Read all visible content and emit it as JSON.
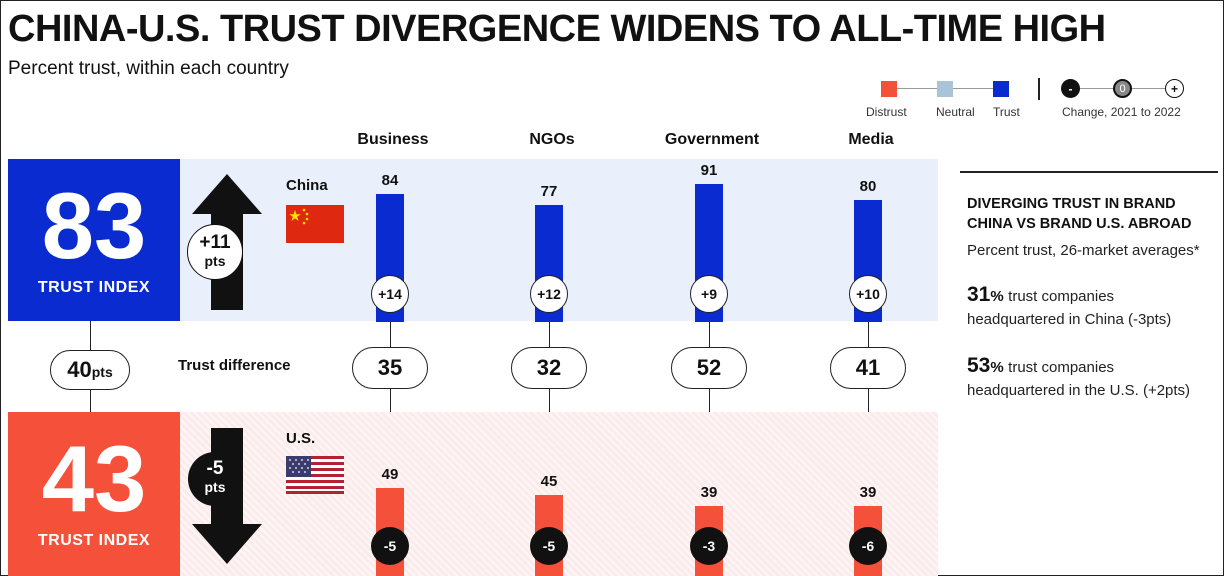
{
  "title": "CHINA-U.S. TRUST DIVERGENCE WIDENS TO ALL-TIME HIGH",
  "subtitle": "Percent trust, within each country",
  "legend": {
    "distrust": "Distrust",
    "neutral": "Neutral",
    "trust": "Trust",
    "change_minus": "-",
    "change_zero": "0",
    "change_plus": "+",
    "change_label": "Change, 2021 to 2022"
  },
  "colors": {
    "trust": "#0a2bd0",
    "distrust": "#f5503a",
    "neutral": "#a9c3d9",
    "china_band": "#e9f0fb",
    "us_band": "#fbeceb"
  },
  "chart_data": {
    "type": "bar",
    "title": "CHINA-U.S. TRUST DIVERGENCE WIDENS TO ALL-TIME HIGH",
    "subtitle": "Percent trust, within each country",
    "categories": [
      "Business",
      "NGOs",
      "Government",
      "Media"
    ],
    "ylim": [
      0,
      100
    ],
    "series": [
      {
        "name": "China",
        "values": [
          84,
          77,
          91,
          80
        ],
        "changes": [
          "+14",
          "+12",
          "+9",
          "+10"
        ],
        "trust_index": "83",
        "trust_index_label": "TRUST INDEX",
        "index_change": "+11",
        "index_change_unit": "pts"
      },
      {
        "name": "U.S.",
        "values": [
          49,
          45,
          39,
          39
        ],
        "changes": [
          "-5",
          "-5",
          "-3",
          "-6"
        ],
        "trust_index": "43",
        "trust_index_label": "TRUST INDEX",
        "index_change": "-5",
        "index_change_unit": "pts"
      }
    ],
    "trust_difference": {
      "label": "Trust difference",
      "values": [
        35,
        32,
        52,
        41
      ],
      "index_gap": "40",
      "index_gap_unit": "pts"
    }
  },
  "side_panel": {
    "heading_line1": "DIVERGING TRUST IN BRAND",
    "heading_line2": "CHINA VS BRAND U.S. ABROAD",
    "subheading": "Percent trust, 26-market averages*",
    "stat1_value": "31",
    "stat1_unit": "%",
    "stat1_text_a": "trust companies",
    "stat1_text_b": "headquartered in China (-3pts)",
    "stat2_value": "53",
    "stat2_unit": "%",
    "stat2_text_a": "trust companies",
    "stat2_text_b": "headquartered in the U.S. (+2pts)"
  }
}
